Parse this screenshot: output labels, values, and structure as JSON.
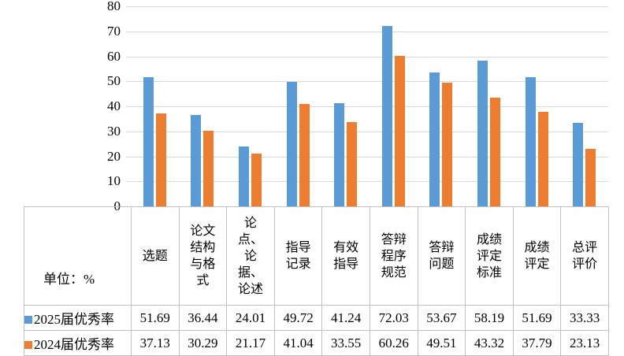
{
  "unit_label": "单位：%",
  "chart_data": {
    "type": "bar",
    "title": "",
    "xlabel": "",
    "ylabel": "",
    "unit": "%",
    "categories": [
      "选题",
      "论文结构与格式",
      "论点、论据、论述",
      "指导记录",
      "有效指导",
      "答辩程序规范",
      "答辩问题",
      "成绩评定标准",
      "成绩评定",
      "总评评价"
    ],
    "categories_wrapped": [
      "选题",
      "论文\n结构\n与格\n式",
      "论\n点、\n论\n据、\n论述",
      "指导\n记录",
      "有效\n指导",
      "答辩\n程序\n规范",
      "答辩\n问题",
      "成绩\n评定\n标准",
      "成绩\n评定",
      "总评\n评价"
    ],
    "series": [
      {
        "name": "2025届优秀率",
        "color": "#5B9BD5",
        "values": [
          51.69,
          36.44,
          24.01,
          49.72,
          41.24,
          72.03,
          53.67,
          58.19,
          51.69,
          33.33
        ]
      },
      {
        "name": "2024届优秀率",
        "color": "#ED7D31",
        "values": [
          37.13,
          30.29,
          21.17,
          41.04,
          33.55,
          60.26,
          49.51,
          43.32,
          37.79,
          23.13
        ]
      }
    ],
    "ylim": [
      0,
      80
    ],
    "ytick_step": 10,
    "yticks": [
      0,
      10,
      20,
      30,
      40,
      50,
      60,
      70,
      80
    ],
    "grid": true,
    "legend_position": "bottom-table"
  },
  "colors": {
    "series_2025": "#5B9BD5",
    "series_2024": "#ED7D31",
    "gridline": "#D9D9D9",
    "table_border": "#C0C0C0",
    "text": "#000000",
    "background": "#FFFFFF"
  }
}
